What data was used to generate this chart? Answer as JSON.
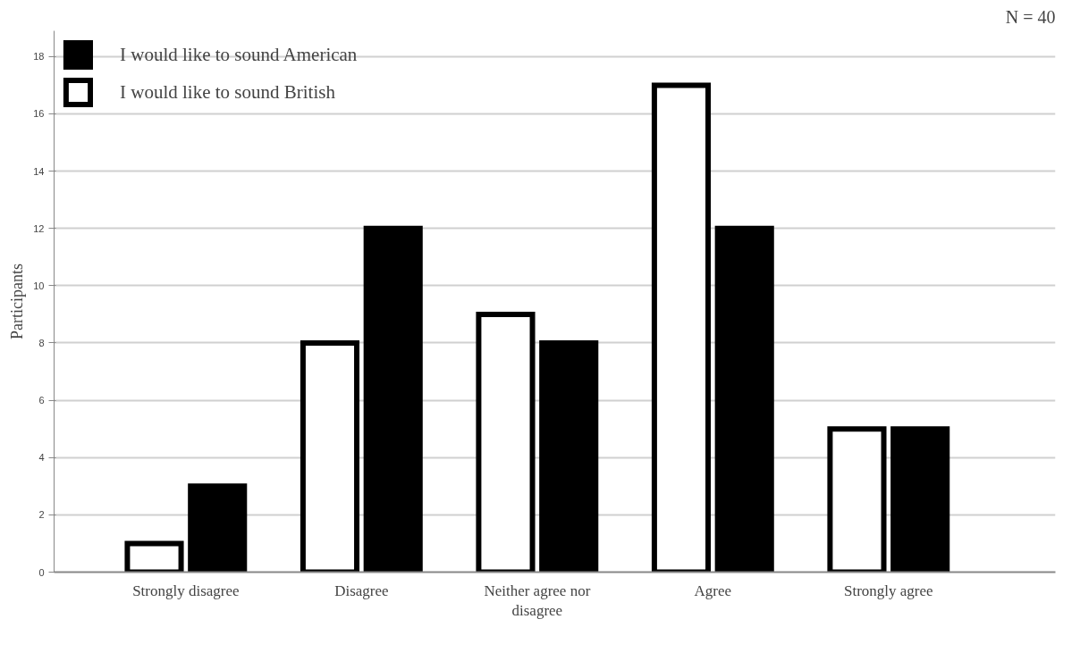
{
  "chart_data": {
    "type": "bar",
    "categories": [
      "Strongly disagree",
      "Disagree",
      "Neither agree nor disagree",
      "Agree",
      "Strongly agree"
    ],
    "series": [
      {
        "name": "I would like to sound British",
        "color": "#ffffff",
        "values": [
          1,
          8,
          9,
          17,
          5
        ]
      },
      {
        "name": "I would like to sound American",
        "color": "#000000",
        "values": [
          3,
          12,
          8,
          12,
          5
        ]
      }
    ],
    "ylabel": "Participants",
    "ylim": [
      0,
      18.9
    ],
    "yticks": [
      0,
      2,
      4,
      6,
      8,
      10,
      12,
      14,
      16,
      18
    ],
    "grid": "y",
    "legend": "top left",
    "annotations": [
      "N = 40"
    ]
  }
}
